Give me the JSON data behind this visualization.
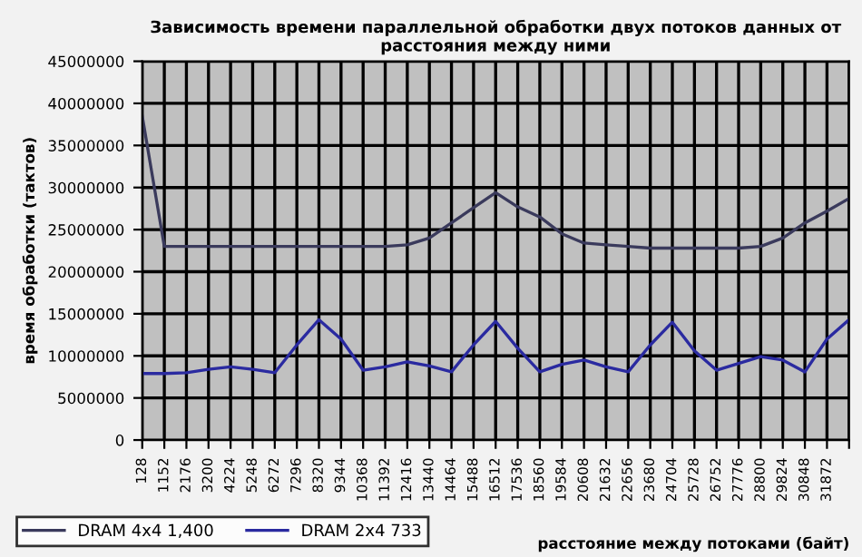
{
  "chart_data": {
    "type": "line",
    "title": "Зависимость времени параллельной обработки двух потоков данных от\nрасстояния между ними",
    "xlabel": "расстояние между потоками (байт)",
    "ylabel": "время обработки (тактов)",
    "categories": [
      "128",
      "1152",
      "2176",
      "3200",
      "4224",
      "5248",
      "6272",
      "7296",
      "8320",
      "9344",
      "10368",
      "11392",
      "12416",
      "13440",
      "14464",
      "15488",
      "16512",
      "17536",
      "18560",
      "19584",
      "20608",
      "21632",
      "22656",
      "23680",
      "24704",
      "25728",
      "26752",
      "27776",
      "28800",
      "29824",
      "30848",
      "31872",
      null
    ],
    "series": [
      {
        "name": "DRAM 4x4 1,400",
        "color": "#3a3a5c",
        "values": [
          38500000,
          23000000,
          23000000,
          23000000,
          23000000,
          23000000,
          23000000,
          23000000,
          23000000,
          23000000,
          23000000,
          23000000,
          23200000,
          24000000,
          25800000,
          27600000,
          29400000,
          27700000,
          26500000,
          24500000,
          23400000,
          23200000,
          23000000,
          22800000,
          22800000,
          22800000,
          22800000,
          22800000,
          23000000,
          24000000,
          25800000,
          27200000,
          28700000
        ]
      },
      {
        "name": "DRAM 2x4 733",
        "color": "#2a2aa0",
        "values": [
          7900000,
          7900000,
          8000000,
          8400000,
          8700000,
          8400000,
          8000000,
          11300000,
          14300000,
          12000000,
          8300000,
          8700000,
          9300000,
          8800000,
          8100000,
          11300000,
          14100000,
          10900000,
          8100000,
          9000000,
          9500000,
          8700000,
          8100000,
          11300000,
          14000000,
          10600000,
          8300000,
          9100000,
          9900000,
          9500000,
          8100000,
          12000000,
          14300000
        ]
      }
    ],
    "ylim": [
      0,
      45000000
    ],
    "yticks": [
      0,
      5000000,
      10000000,
      15000000,
      20000000,
      25000000,
      30000000,
      35000000,
      40000000,
      45000000
    ],
    "grid": true,
    "legend": "bottom left",
    "marker": "none",
    "line_style": "solid"
  }
}
